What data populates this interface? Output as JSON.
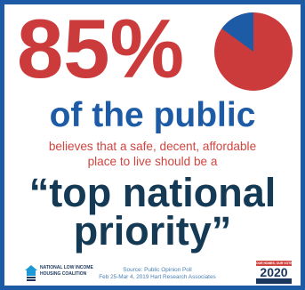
{
  "headline": {
    "stat": "85%",
    "subject": "of the public"
  },
  "statement": {
    "line1": "believes that a safe, decent, affordable",
    "line2": "place to live should be a"
  },
  "emphasis": {
    "line1": "“top national",
    "line2": "priority”"
  },
  "pie": {
    "share_percent": 85,
    "color_share": "#cc3b3b",
    "color_rest": "#1d5ba6"
  },
  "footer": {
    "logo_line1": "NATIONAL LOW INCOME",
    "logo_line2": "HOUSING COALITION",
    "source_line1": "Source: Public Opinion Poll",
    "source_line2": "Feb 25-Mar 4, 2019 Hart Research Associates",
    "badge_top": "OUR HOMES, OUR VOTES",
    "badge_year": "2020"
  },
  "colors": {
    "border": "#1d5ba6",
    "stat": "#cc3b3b",
    "subject": "#1d5ba6",
    "statement": "#d0453f",
    "emphasis": "#153a55"
  }
}
